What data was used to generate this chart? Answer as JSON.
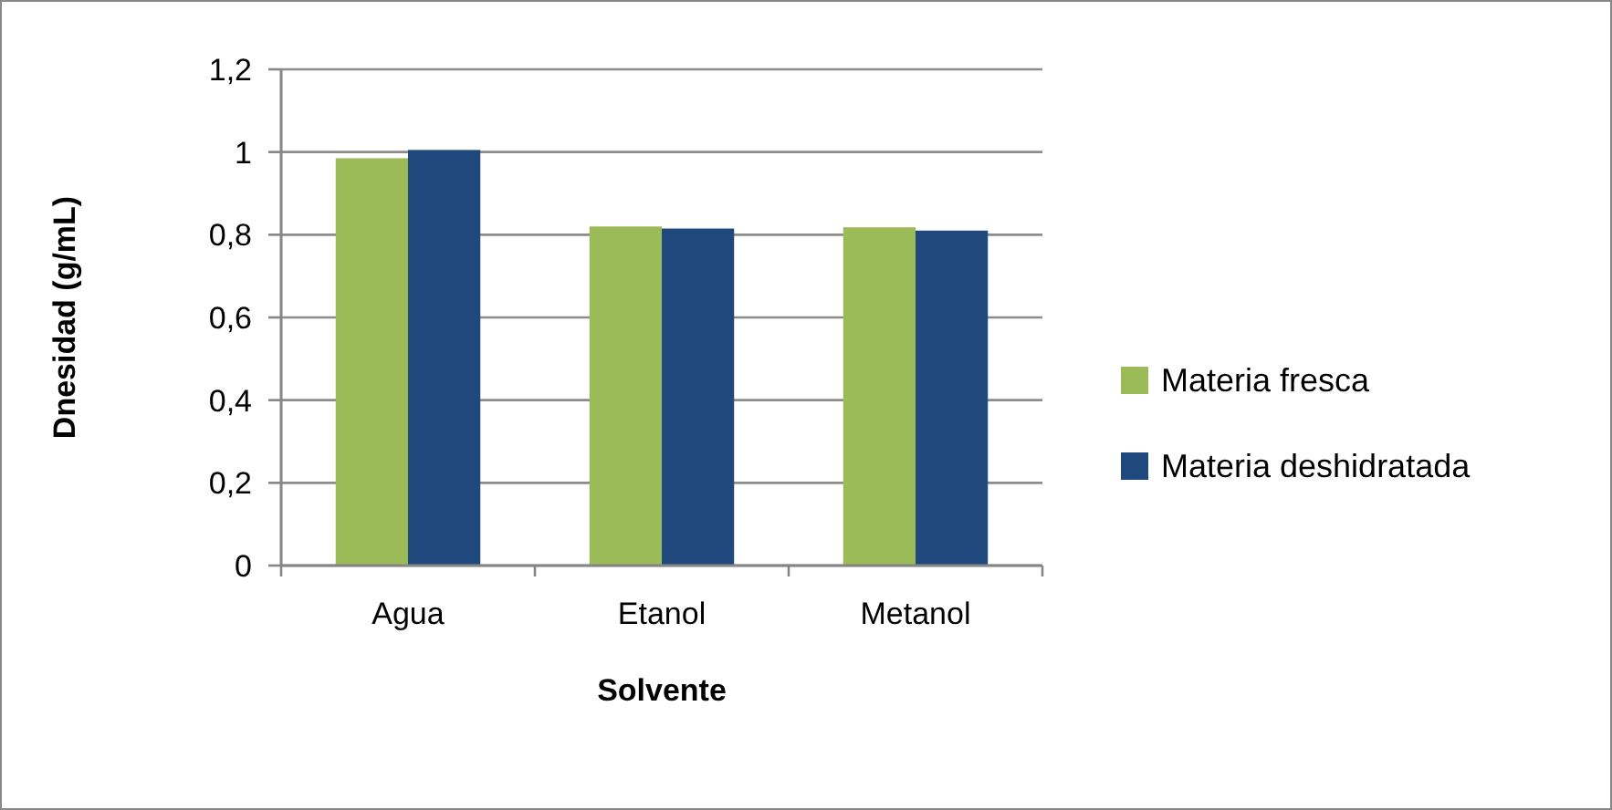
{
  "chart_data": {
    "type": "bar",
    "xlabel": "Solvente",
    "ylabel": "Dnesidad (g/mL)",
    "categories": [
      "Agua",
      "Etanol",
      "Metanol"
    ],
    "series": [
      {
        "name": "Materia fresca",
        "color": "#9bbb59",
        "values": [
          0.985,
          0.82,
          0.818
        ]
      },
      {
        "name": "Materia deshidratada",
        "color": "#1f497d",
        "values": [
          1.005,
          0.815,
          0.81
        ]
      }
    ],
    "ylim": [
      0,
      1.2
    ],
    "yticks": [
      {
        "value": 0,
        "label": "0"
      },
      {
        "value": 0.2,
        "label": "0,2"
      },
      {
        "value": 0.4,
        "label": "0,4"
      },
      {
        "value": 0.6,
        "label": "0,6"
      },
      {
        "value": 0.8,
        "label": "0,8"
      },
      {
        "value": 1,
        "label": "1"
      },
      {
        "value": 1.2,
        "label": "1,2"
      }
    ],
    "grid": "y",
    "legend": "right"
  }
}
